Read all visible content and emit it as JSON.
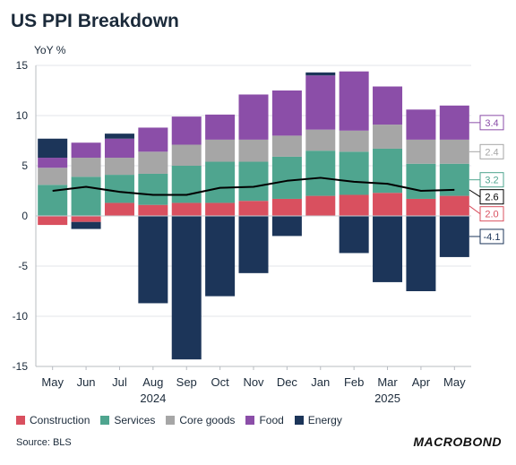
{
  "title": "US PPI Breakdown",
  "source": "Source: BLS",
  "brand": "MACROBOND",
  "chart_data": {
    "type": "bar",
    "stacked": true,
    "ylabel": "YoY %",
    "ylim": [
      -15,
      15
    ],
    "yticks": [
      -15,
      -10,
      -5,
      0,
      5,
      10,
      15
    ],
    "grid": true,
    "legend_position": "bottom",
    "categories": [
      "May",
      "Jun",
      "Jul",
      "Aug",
      "Sep",
      "Oct",
      "Nov",
      "Dec",
      "Jan",
      "Feb",
      "Mar",
      "Apr",
      "May"
    ],
    "year_labels": [
      {
        "index": 3,
        "label": "2024"
      },
      {
        "index": 10,
        "label": "2025"
      }
    ],
    "series": [
      {
        "name": "Construction",
        "color": "#d9505f",
        "values": [
          -0.9,
          -0.6,
          1.3,
          1.1,
          1.3,
          1.3,
          1.5,
          1.7,
          2.0,
          2.1,
          2.3,
          1.7,
          2.0
        ]
      },
      {
        "name": "Services",
        "color": "#4fa58f",
        "values": [
          3.1,
          3.9,
          2.8,
          3.1,
          3.7,
          4.1,
          3.9,
          4.2,
          4.5,
          4.3,
          4.4,
          3.5,
          3.2
        ]
      },
      {
        "name": "Core goods",
        "color": "#a6a6a6",
        "values": [
          1.7,
          1.9,
          1.7,
          2.2,
          2.1,
          2.2,
          2.2,
          2.1,
          2.1,
          2.1,
          2.4,
          2.4,
          2.4
        ]
      },
      {
        "name": "Food",
        "color": "#8b4ea8",
        "values": [
          1.0,
          1.5,
          1.9,
          2.4,
          2.8,
          2.5,
          4.5,
          4.5,
          5.4,
          5.9,
          3.8,
          3.0,
          3.4
        ]
      },
      {
        "name": "Energy",
        "color": "#1c3559",
        "values": [
          1.9,
          -0.7,
          0.5,
          -8.7,
          -14.3,
          -8.0,
          -5.7,
          -2.0,
          0.3,
          -3.7,
          -6.6,
          -7.5,
          -4.1
        ]
      }
    ],
    "total": {
      "name": "Total",
      "color": "#000000",
      "values": [
        2.5,
        2.9,
        2.4,
        2.1,
        2.1,
        2.8,
        2.9,
        3.5,
        3.8,
        3.4,
        3.2,
        2.5,
        2.6
      ]
    },
    "end_labels": [
      {
        "series": "Construction",
        "text": "2.0",
        "color": "#d9505f"
      },
      {
        "series": "Services",
        "text": "3.2",
        "color": "#4fa58f"
      },
      {
        "series": "Core goods",
        "text": "2.4",
        "color": "#a6a6a6"
      },
      {
        "series": "Food",
        "text": "3.4",
        "color": "#8b4ea8"
      },
      {
        "series": "Total",
        "text": "2.6",
        "color": "#000000"
      },
      {
        "series": "Energy",
        "text": "-4.1",
        "color": "#1c3559"
      }
    ]
  }
}
